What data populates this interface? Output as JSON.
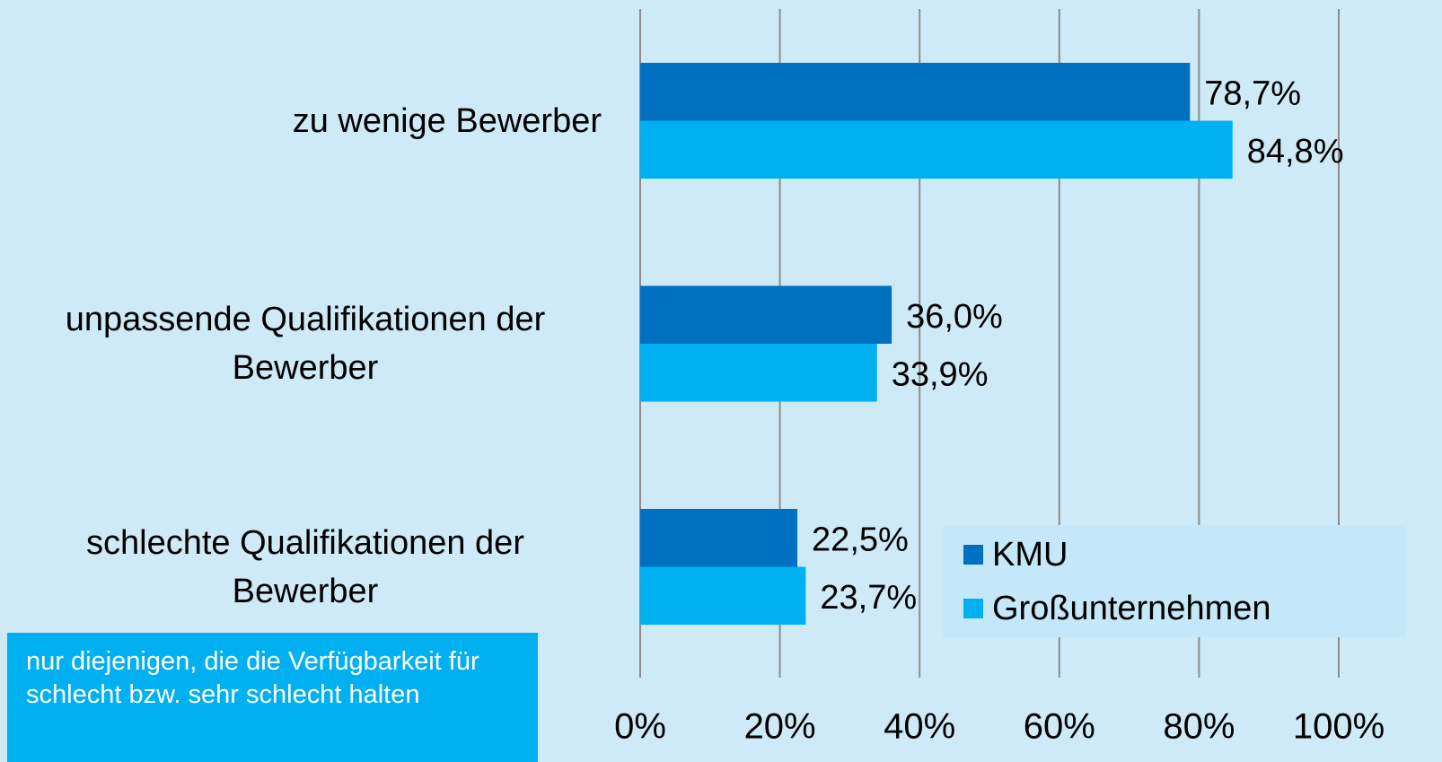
{
  "chart_data": {
    "type": "bar",
    "orientation": "horizontal",
    "categories": [
      "zu wenige Bewerber",
      "unpassende Qualifikationen der Bewerber",
      "schlechte Qualifikationen der Bewerber"
    ],
    "series": [
      {
        "name": "KMU",
        "color": "#0070c0",
        "values": [
          78.7,
          36.0,
          22.5
        ],
        "value_labels": [
          "78,7%",
          "36,0%",
          "22,5%"
        ]
      },
      {
        "name": "Großunternehmen",
        "color": "#00b0f0",
        "values": [
          84.8,
          33.9,
          23.7
        ],
        "value_labels": [
          "84,8%",
          "33,9%",
          "23,7%"
        ]
      }
    ],
    "xlim": [
      0,
      100
    ],
    "xticks": [
      {
        "value": 0,
        "label": "0%"
      },
      {
        "value": 20,
        "label": "20%"
      },
      {
        "value": 40,
        "label": "40%"
      },
      {
        "value": 60,
        "label": "60%"
      },
      {
        "value": 80,
        "label": "80%"
      },
      {
        "value": 100,
        "label": "100%"
      }
    ],
    "grid": true,
    "legend": "lower right",
    "note": "nur diejenigen, die die Verfügbarkeit für schlecht bzw. sehr schlecht halten"
  }
}
